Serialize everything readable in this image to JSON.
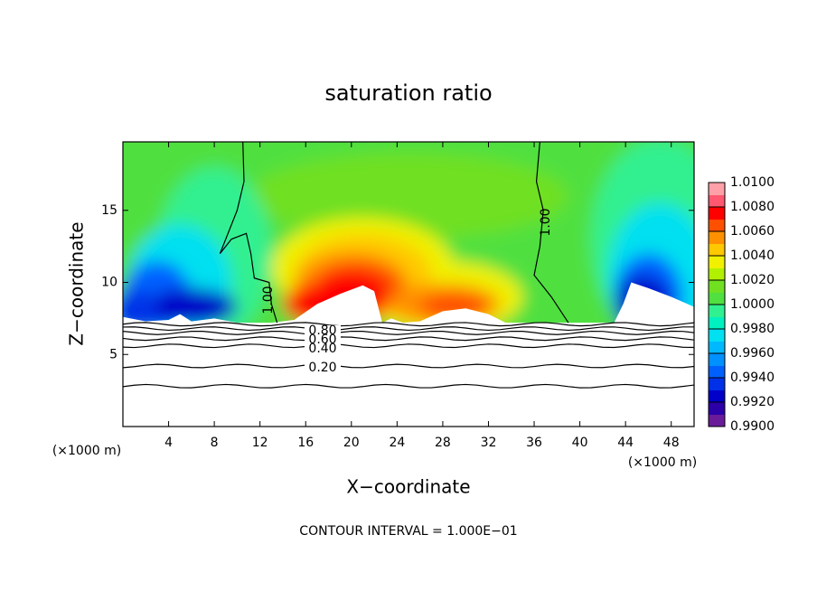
{
  "chart_data": {
    "type": "contour",
    "title": "saturation ratio",
    "xlabel": "X−coordinate",
    "ylabel": "Z−coordinate",
    "x_unit": "(×1000 m)",
    "note": "CONTOUR INTERVAL = 1.000E−01",
    "xlim": [
      0,
      50
    ],
    "xticks": [
      4,
      8,
      12,
      16,
      20,
      24,
      28,
      32,
      36,
      40,
      44,
      48
    ],
    "ylim": [
      0,
      19.75
    ],
    "yticks": [
      5,
      10,
      15
    ],
    "colorbar": {
      "lim": [
        0.99,
        1.01
      ],
      "ticks": [
        {
          "value": 0.99,
          "label": "0.9900"
        },
        {
          "value": 0.992,
          "label": "0.9920"
        },
        {
          "value": 0.994,
          "label": "0.9940"
        },
        {
          "value": 0.996,
          "label": "0.9960"
        },
        {
          "value": 0.998,
          "label": "0.9980"
        },
        {
          "value": 1.0,
          "label": "1.0000"
        },
        {
          "value": 1.002,
          "label": "1.0020"
        },
        {
          "value": 1.004,
          "label": "1.0040"
        },
        {
          "value": 1.006,
          "label": "1.0060"
        },
        {
          "value": 1.008,
          "label": "1.0080"
        },
        {
          "value": 1.01,
          "label": "1.0100"
        }
      ],
      "colors": [
        "#6a1b9a",
        "#2b00a8",
        "#0000c8",
        "#0030e8",
        "#0060ff",
        "#0090ff",
        "#00b8ff",
        "#00e0f0",
        "#00f0c0",
        "#30f090",
        "#50e040",
        "#70e020",
        "#b0f000",
        "#f0f000",
        "#ffc800",
        "#ff9000",
        "#ff5000",
        "#ff0000",
        "#ff5870",
        "#ffa0a8"
      ]
    },
    "contour_labels": [
      {
        "value": 1.0,
        "label": "1.00"
      },
      {
        "value": 1.0,
        "label": "1.00"
      },
      {
        "value": 0.8,
        "label": "0.80"
      },
      {
        "value": 0.6,
        "label": "0.60"
      },
      {
        "value": 0.4,
        "label": "0.40"
      },
      {
        "value": 0.2,
        "label": "0.20"
      }
    ]
  }
}
